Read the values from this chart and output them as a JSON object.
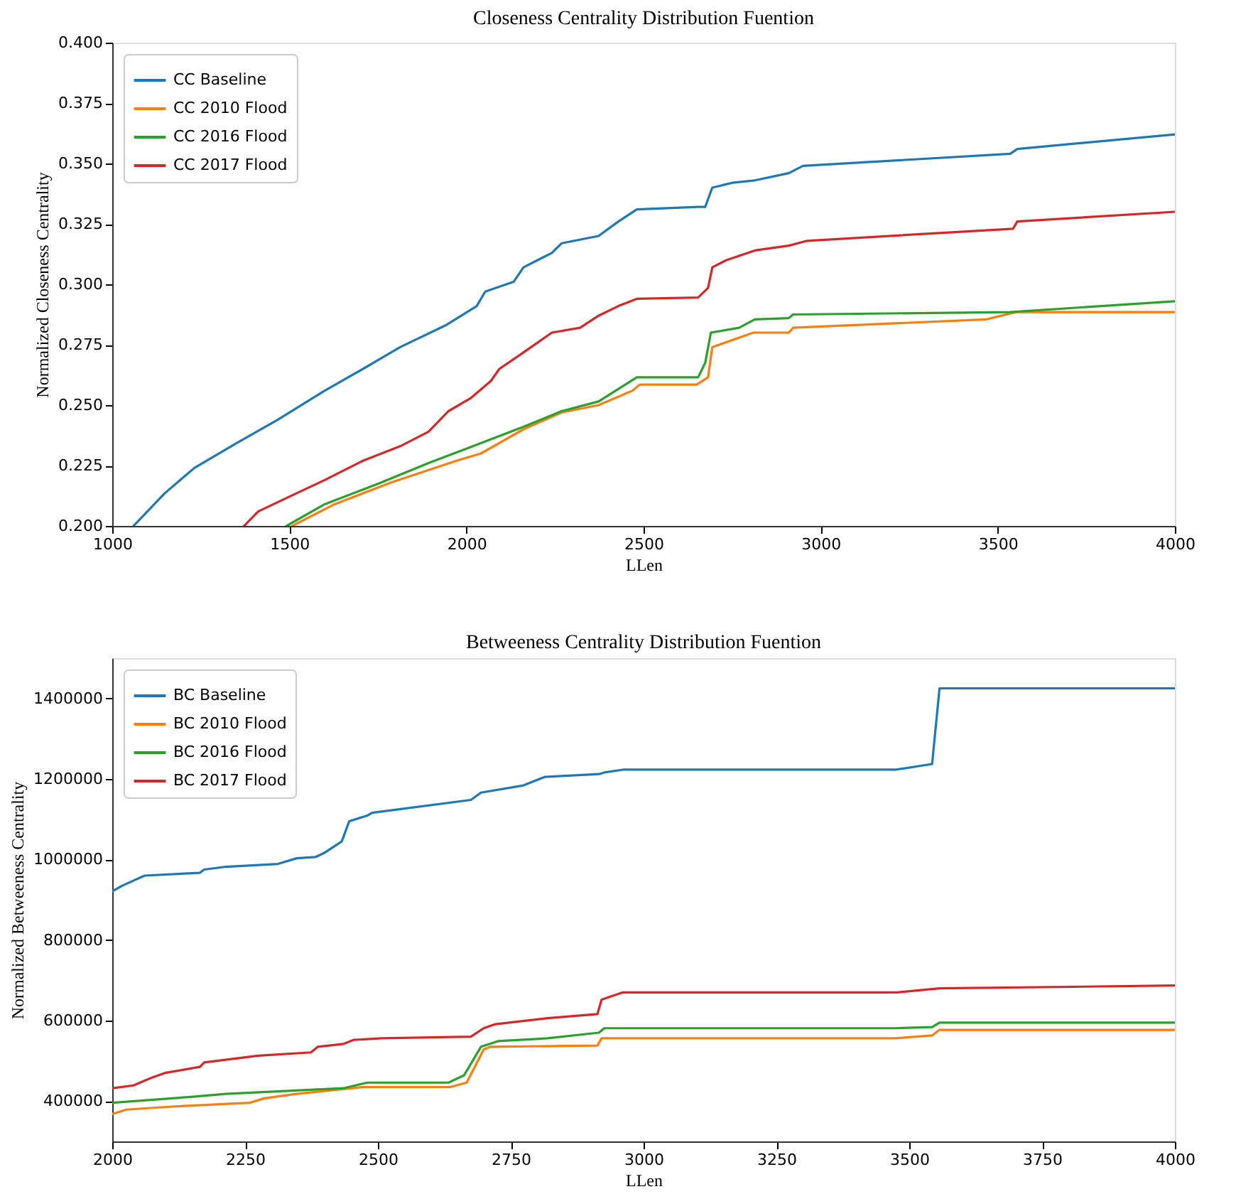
{
  "chart_data": [
    {
      "type": "line",
      "title": "Closeness Centrality Distribution Fuention",
      "xlabel": "LLen",
      "ylabel": "Normalized Closeness Centrality",
      "legend": "top left",
      "grid": false,
      "line_style": "solid",
      "marker": "none",
      "xlim": [
        1000,
        4000
      ],
      "xticks": [
        1000,
        1500,
        2000,
        2500,
        3000,
        3500,
        4000
      ],
      "ylim": [
        0.2,
        0.4
      ],
      "yticks": [
        {
          "value": 0.2,
          "label": "0.200"
        },
        {
          "value": 0.225,
          "label": "0.225"
        },
        {
          "value": 0.25,
          "label": "0.250"
        },
        {
          "value": 0.275,
          "label": "0.275"
        },
        {
          "value": 0.3,
          "label": "0.300"
        },
        {
          "value": 0.325,
          "label": "0.325"
        },
        {
          "value": 0.35,
          "label": "0.350"
        },
        {
          "value": 0.375,
          "label": "0.375"
        },
        {
          "value": 0.4,
          "label": "0.400"
        }
      ],
      "series": [
        {
          "name": "CC Baseline",
          "color": "#1f77b4",
          "x": [
            1060,
            1148,
            1232,
            1348,
            1468,
            1600,
            1708,
            1813,
            1941,
            2029,
            2053,
            2133,
            2161,
            2241,
            2269,
            2373,
            2429,
            2481,
            2654,
            2674,
            2694,
            2750,
            2814,
            2910,
            2950,
            3535,
            3555,
            4000
          ],
          "values": [
            0.2,
            0.2135,
            0.224,
            0.234,
            0.244,
            0.256,
            0.265,
            0.274,
            0.283,
            0.291,
            0.297,
            0.301,
            0.307,
            0.313,
            0.317,
            0.32,
            0.326,
            0.331,
            0.332,
            0.332,
            0.34,
            0.342,
            0.343,
            0.346,
            0.349,
            0.354,
            0.356,
            0.362
          ]
        },
        {
          "name": "CC 2010 Flood",
          "color": "#ff7f0e",
          "x": [
            1508,
            1628,
            1788,
            1972,
            2041,
            2161,
            2269,
            2373,
            2469,
            2489,
            2650,
            2682,
            2694,
            2810,
            2910,
            2922,
            3468,
            3551,
            4000
          ],
          "values": [
            0.2,
            0.209,
            0.218,
            0.227,
            0.23,
            0.24,
            0.247,
            0.25,
            0.256,
            0.2585,
            0.2585,
            0.2615,
            0.274,
            0.28,
            0.28,
            0.282,
            0.2855,
            0.2885,
            0.2885
          ]
        },
        {
          "name": "CC 2016 Flood",
          "color": "#2ca02c",
          "x": [
            1492,
            1600,
            1760,
            1893,
            2000,
            2161,
            2269,
            2373,
            2481,
            2654,
            2674,
            2690,
            2770,
            2814,
            2910,
            2922,
            3535,
            4000
          ],
          "values": [
            0.2,
            0.209,
            0.218,
            0.226,
            0.232,
            0.241,
            0.2475,
            0.2515,
            0.2615,
            0.2615,
            0.2675,
            0.28,
            0.282,
            0.2855,
            0.286,
            0.2875,
            0.2885,
            0.293
          ]
        },
        {
          "name": "CC 2017 Flood",
          "color": "#d62728",
          "x": [
            1372,
            1412,
            1520,
            1600,
            1708,
            1813,
            1893,
            1949,
            2013,
            2069,
            2093,
            2153,
            2241,
            2321,
            2373,
            2429,
            2481,
            2654,
            2682,
            2694,
            2734,
            2814,
            2910,
            2962,
            3543,
            3555,
            4000
          ],
          "values": [
            0.2,
            0.206,
            0.2135,
            0.219,
            0.227,
            0.233,
            0.239,
            0.2475,
            0.253,
            0.26,
            0.265,
            0.271,
            0.28,
            0.282,
            0.287,
            0.291,
            0.294,
            0.2945,
            0.2985,
            0.307,
            0.31,
            0.314,
            0.316,
            0.318,
            0.323,
            0.326,
            0.33
          ]
        }
      ]
    },
    {
      "type": "line",
      "title": "Betweeness Centrality Distribution Fuention",
      "xlabel": "LLen",
      "ylabel": "Normalized Betweeness Centrality",
      "legend": "top left",
      "grid": false,
      "line_style": "solid",
      "marker": "none",
      "xlim": [
        2000,
        4000
      ],
      "xticks": [
        2000,
        2250,
        2500,
        2750,
        3000,
        3250,
        3500,
        3750,
        4000
      ],
      "ylim": [
        300000,
        1500000
      ],
      "yticks": [
        400000,
        600000,
        800000,
        1000000,
        1200000,
        1400000
      ],
      "series": [
        {
          "name": "BC Baseline",
          "color": "#1f77b4",
          "x": [
            2000,
            2019,
            2061,
            2165,
            2173,
            2214,
            2312,
            2347,
            2382,
            2400,
            2432,
            2446,
            2480,
            2489,
            2675,
            2694,
            2774,
            2814,
            2916,
            2926,
            2961,
            3474,
            3543,
            3557,
            4000
          ],
          "values": [
            921000,
            935000,
            960000,
            967000,
            975000,
            982000,
            989000,
            1003000,
            1006000,
            1017000,
            1045000,
            1095000,
            1109000,
            1116000,
            1148000,
            1166000,
            1184000,
            1205000,
            1212000,
            1216000,
            1223000,
            1223000,
            1237000,
            1425000,
            1425000
          ]
        },
        {
          "name": "BC 2010 Flood",
          "color": "#ff7f0e",
          "x": [
            2000,
            2027,
            2107,
            2259,
            2286,
            2347,
            2473,
            2636,
            2667,
            2699,
            2712,
            2913,
            2921,
            3474,
            3543,
            3557,
            4000
          ],
          "values": [
            368000,
            379000,
            386000,
            396000,
            407000,
            418000,
            435000,
            435000,
            446000,
            528000,
            535000,
            538000,
            556000,
            556000,
            563000,
            577000,
            577000
          ]
        },
        {
          "name": "BC 2016 Flood",
          "color": "#2ca02c",
          "x": [
            2000,
            2152,
            2214,
            2435,
            2480,
            2633,
            2662,
            2694,
            2726,
            2819,
            2916,
            2926,
            3474,
            3543,
            3557,
            4000
          ],
          "values": [
            396000,
            411000,
            418000,
            432000,
            446000,
            446000,
            464000,
            535000,
            549000,
            556000,
            570000,
            581000,
            581000,
            584000,
            595000,
            595000
          ]
        },
        {
          "name": "BC 2017 Flood",
          "color": "#d62728",
          "x": [
            2000,
            2040,
            2072,
            2099,
            2165,
            2173,
            2275,
            2374,
            2387,
            2435,
            2454,
            2507,
            2675,
            2699,
            2721,
            2819,
            2913,
            2921,
            2961,
            3477,
            3557,
            4000
          ],
          "values": [
            432000,
            439000,
            457000,
            470000,
            485000,
            496000,
            513000,
            521000,
            535000,
            542000,
            552000,
            556000,
            560000,
            581000,
            591000,
            606000,
            616000,
            652000,
            670000,
            670000,
            680000,
            687000
          ]
        }
      ]
    }
  ]
}
